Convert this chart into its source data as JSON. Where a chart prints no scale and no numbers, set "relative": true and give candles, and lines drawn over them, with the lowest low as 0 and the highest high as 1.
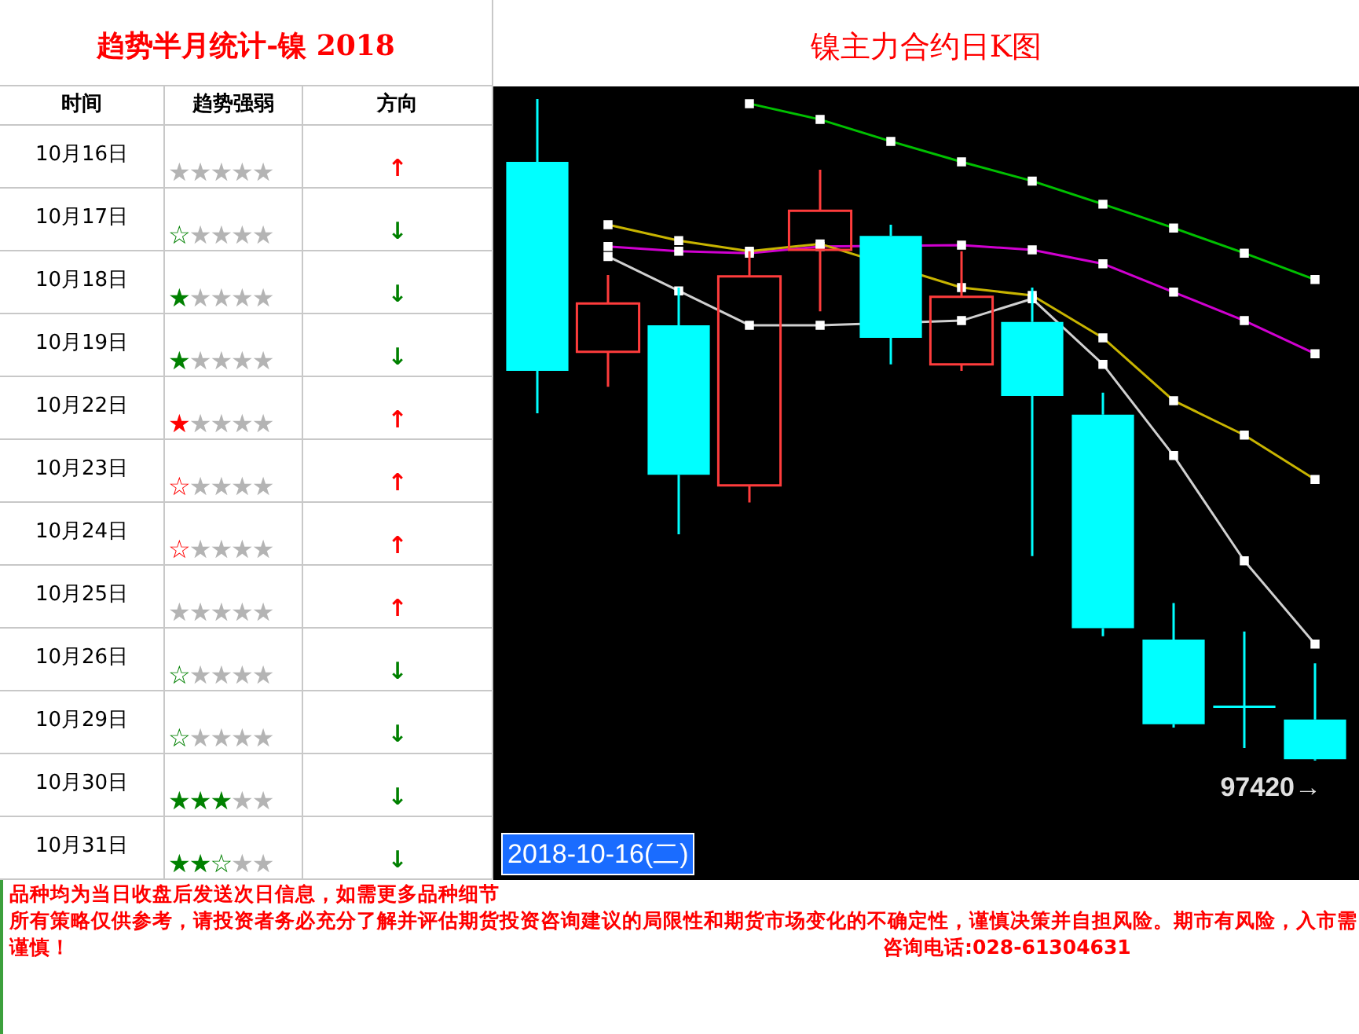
{
  "chart_data": [
    {
      "type": "other",
      "title": "趋势半月统计-镍 2018",
      "categories": [
        "10月16日",
        "10月17日",
        "10月18日",
        "10月19日",
        "10月22日",
        "10月23日",
        "10月24日",
        "10月25日",
        "10月26日",
        "10月29日",
        "10月30日",
        "10月31日"
      ],
      "cell_labels": [
        [
          null,
          "★★★★★",
          "↑"
        ],
        [
          "☆",
          "★★★★",
          "↓"
        ],
        [
          "★",
          "★★★★",
          "↓"
        ],
        [
          "★",
          "★★★★",
          "↓"
        ],
        [
          "★",
          "★★★★",
          "↑"
        ],
        [
          "☆",
          "★★★★",
          "↑"
        ],
        [
          "☆",
          "★★★★",
          "↑"
        ],
        [
          null,
          "★★★★★",
          "↑"
        ],
        [
          "☆",
          "★★★★",
          "↓"
        ],
        [
          "☆",
          "★★★★",
          "↓"
        ],
        [
          "★★★",
          "★★",
          "↓"
        ],
        [
          "★★☆",
          "★★",
          "↓"
        ]
      ],
      "colors": [
        "#ff0000",
        "#008000",
        "#008000",
        "#008000",
        "#ff0000",
        "#ff0000",
        "#ff0000",
        "#ff0000",
        "#008000",
        "#008000",
        "#008000",
        "#008000"
      ],
      "annotations": [
        "时间",
        "趋势强弱",
        "方向",
        "品种均为当日收盘后发送次日信息，如需更多品种细节",
        "所有策略仅供参考，请投资者务必充分了解并评估期货投资咨询建议的局限性和期货市场变化的不确定性，谨慎决策并自担风险。期市有风险，入市需谨慎！",
        "咨询电话:028-61304631"
      ]
    },
    {
      "type": "candlestick",
      "title": "镍主力合约日K图",
      "relative": true,
      "marker": "square",
      "categories": [
        null,
        null,
        null,
        null,
        null,
        null,
        null,
        null,
        null,
        null,
        null,
        null
      ],
      "ohlc": [
        [
          0.905,
          1,
          0.525,
          0.589
        ],
        [
          0.618,
          0.734,
          0.565,
          0.691
        ],
        [
          0.658,
          0.715,
          0.342,
          0.432
        ],
        [
          0.416,
          0.77,
          0.39,
          0.732
        ],
        [
          0.772,
          0.893,
          0.679,
          0.831
        ],
        [
          0.793,
          0.81,
          0.599,
          0.639
        ],
        [
          0.599,
          0.77,
          0.589,
          0.701
        ],
        [
          0.663,
          0.715,
          0.309,
          0.551
        ],
        [
          0.523,
          0.556,
          0.188,
          0.2
        ],
        [
          0.183,
          0.238,
          0.05,
          0.055
        ],
        [
          0.083,
          0.195,
          0.019,
          0.081
        ],
        [
          0.062,
          0.147,
          0,
          0.002
        ]
      ],
      "colors": [
        "#00ffff",
        "#ff3c3c",
        "#00ffff",
        "#ff3c3c",
        "#ff3c3c",
        "#00ffff",
        "#ff3c3c",
        "#00ffff",
        "#00ffff",
        "#00ffff",
        "#00ffff",
        "#00ffff"
      ],
      "series": [
        {
          "type": "line",
          "color": "#d0d0d0",
          "values": [
            null,
            0.762,
            0.71,
            0.658,
            0.658,
            null,
            0.665,
            0.698,
            0.599,
            0.461,
            0.302,
            0.176
          ]
        },
        {
          "type": "line",
          "color": "#c8b400",
          "values": [
            null,
            0.81,
            0.786,
            0.77,
            0.781,
            null,
            0.715,
            0.703,
            0.639,
            0.544,
            0.492,
            0.425
          ]
        },
        {
          "type": "line",
          "color": "#d000d0",
          "values": [
            null,
            0.777,
            0.77,
            0.767,
            0.777,
            null,
            0.779,
            0.772,
            0.751,
            0.708,
            0.665,
            0.615
          ]
        },
        {
          "type": "line",
          "color": "#00c000",
          "values": [
            null,
            null,
            null,
            0.993,
            0.969,
            0.936,
            0.905,
            0.876,
            0.841,
            0.805,
            0.767,
            0.727
          ]
        }
      ],
      "annotations": [
        "2018-10-16(二)",
        "97420→"
      ]
    }
  ]
}
